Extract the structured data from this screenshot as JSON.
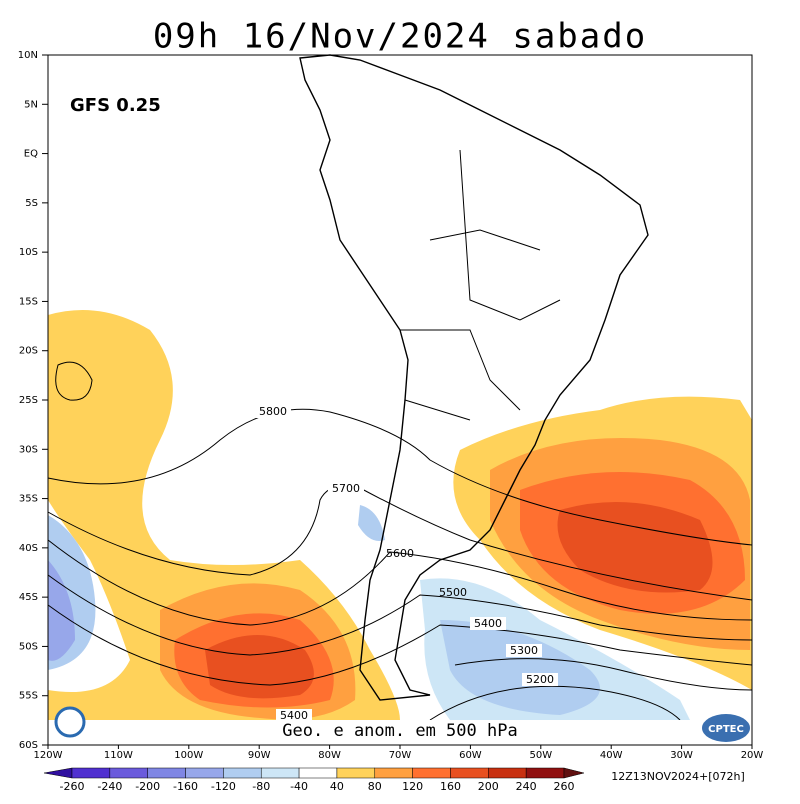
{
  "header": {
    "title": "09h 16/Nov/2024 sabado",
    "model": "GFS 0.25"
  },
  "lat_labels": [
    "10N",
    "5N",
    "EQ",
    "5S",
    "10S",
    "15S",
    "20S",
    "25S",
    "30S",
    "35S",
    "40S",
    "45S",
    "50S",
    "55S",
    "60S"
  ],
  "lon_labels": [
    "120W",
    "110W",
    "100W",
    "90W",
    "80W",
    "70W",
    "60W",
    "50W",
    "40W",
    "30W",
    "20W"
  ],
  "contours": [
    {
      "label": "5800"
    },
    {
      "label": "5700"
    },
    {
      "label": "5600"
    },
    {
      "label": "5500"
    },
    {
      "label": "5400"
    },
    {
      "label": "5300"
    },
    {
      "label": "5200"
    },
    {
      "label": "5400"
    }
  ],
  "caption": "Geo. e anom. em 500 hPa",
  "logo": "CPTEC",
  "colorbar": {
    "labels": [
      -260,
      -240,
      -200,
      -160,
      -120,
      -80,
      -40,
      40,
      80,
      120,
      160,
      200,
      240,
      260
    ],
    "colors": [
      "#3010a0",
      "#5030d0",
      "#6a5adc",
      "#7f86e4",
      "#97a7ea",
      "#b0cdf0",
      "#cde6f6",
      "#ffffff",
      "#ffd25a",
      "#ffa040",
      "#ff7030",
      "#e85020",
      "#c83010",
      "#901010",
      "#601010"
    ]
  },
  "run_info": "12Z13NOV2024+[072h]"
}
